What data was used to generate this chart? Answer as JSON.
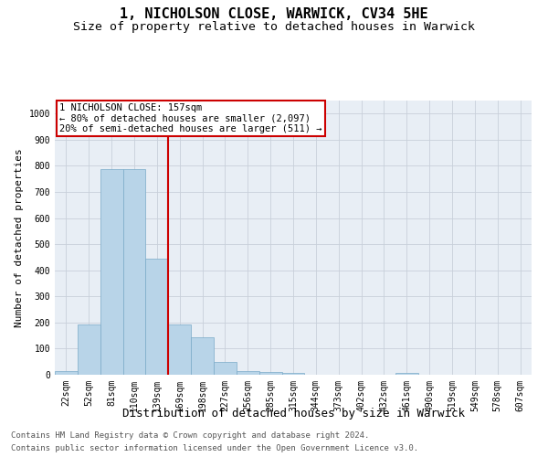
{
  "title": "1, NICHOLSON CLOSE, WARWICK, CV34 5HE",
  "subtitle": "Size of property relative to detached houses in Warwick",
  "xlabel": "Distribution of detached houses by size in Warwick",
  "ylabel": "Number of detached properties",
  "footer_line1": "Contains HM Land Registry data © Crown copyright and database right 2024.",
  "footer_line2": "Contains public sector information licensed under the Open Government Licence v3.0.",
  "categories": [
    "22sqm",
    "52sqm",
    "81sqm",
    "110sqm",
    "139sqm",
    "169sqm",
    "198sqm",
    "227sqm",
    "256sqm",
    "285sqm",
    "315sqm",
    "344sqm",
    "373sqm",
    "402sqm",
    "432sqm",
    "461sqm",
    "490sqm",
    "519sqm",
    "549sqm",
    "578sqm",
    "607sqm"
  ],
  "values": [
    15,
    193,
    787,
    787,
    443,
    193,
    143,
    48,
    15,
    10,
    8,
    0,
    0,
    0,
    0,
    8,
    0,
    0,
    0,
    0,
    0
  ],
  "bar_color": "#b8d4e8",
  "bar_edge_color": "#7aaac8",
  "red_line_x": 4.5,
  "annotation_line1": "1 NICHOLSON CLOSE: 157sqm",
  "annotation_line2": "← 80% of detached houses are smaller (2,097)",
  "annotation_line3": "20% of semi-detached houses are larger (511) →",
  "annotation_box_color": "#ffffff",
  "annotation_box_edge_color": "#cc0000",
  "ylim": [
    0,
    1050
  ],
  "yticks": [
    0,
    100,
    200,
    300,
    400,
    500,
    600,
    700,
    800,
    900,
    1000
  ],
  "title_fontsize": 11,
  "subtitle_fontsize": 9.5,
  "xlabel_fontsize": 9,
  "ylabel_fontsize": 8,
  "tick_fontsize": 7,
  "annotation_fontsize": 7.5,
  "footer_fontsize": 6.5,
  "background_color": "#ffffff",
  "plot_bg_color": "#e8eef5",
  "grid_color": "#c8d0da"
}
